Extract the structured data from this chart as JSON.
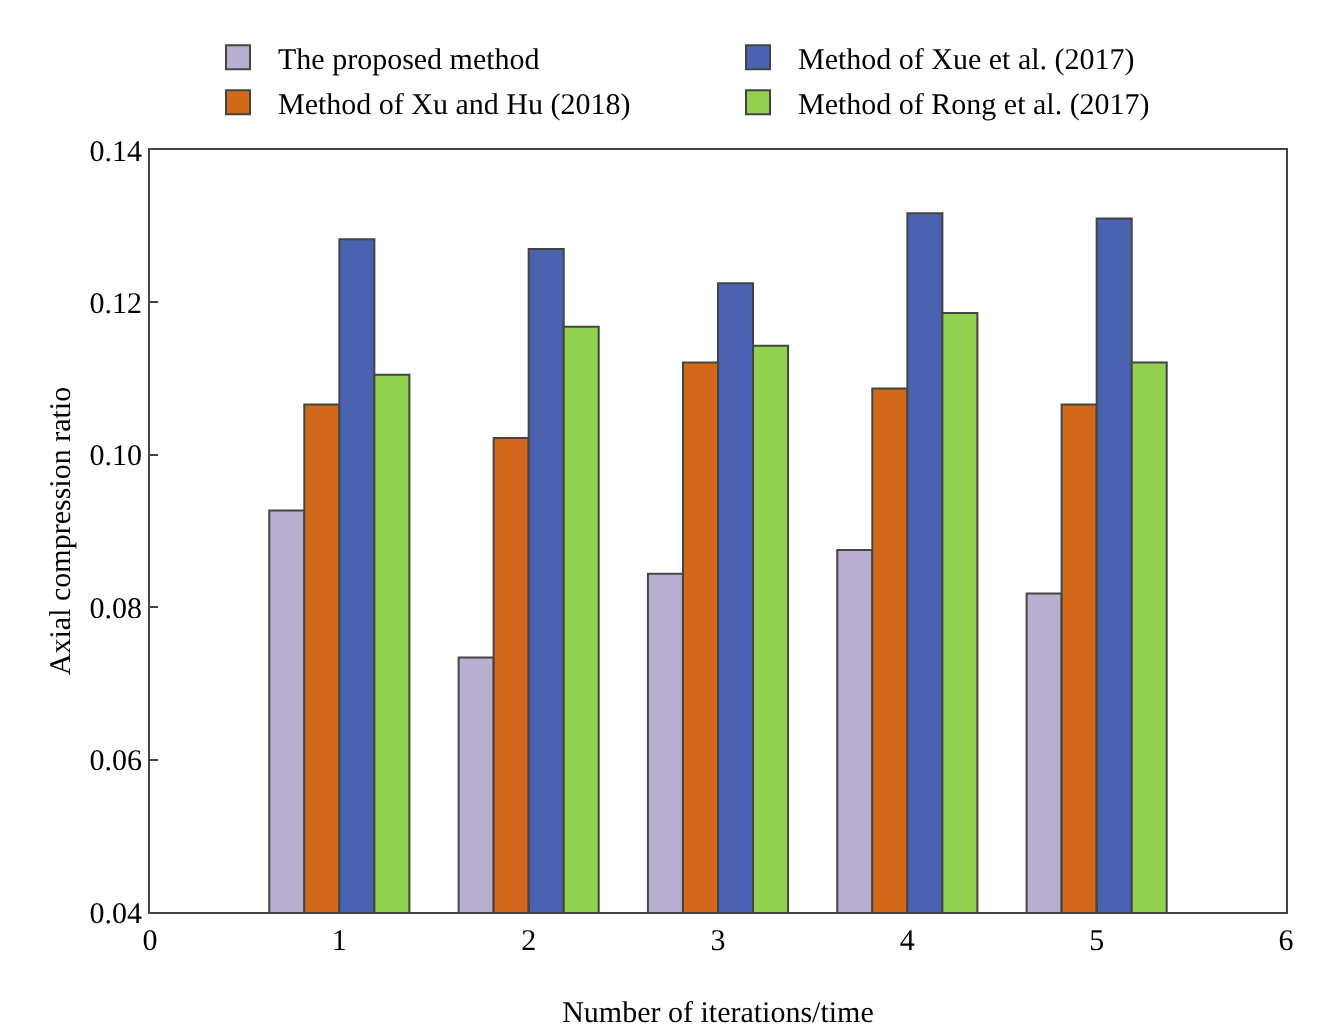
{
  "chart_data": {
    "type": "bar",
    "xlabel": "Number of iterations/time",
    "ylabel": "Axial compression ratio",
    "x": [
      1,
      2,
      3,
      4,
      5
    ],
    "series": [
      {
        "name": "The proposed method",
        "color": "#b8aed0",
        "values": [
          0.0927,
          0.0734,
          0.0844,
          0.0875,
          0.0818
        ]
      },
      {
        "name": "Method of Xu and Hu (2018)",
        "color": "#d2691a",
        "values": [
          0.1066,
          0.1022,
          0.1121,
          0.1087,
          0.1066
        ]
      },
      {
        "name": "Method of Xue et al. (2017)",
        "color": "#4a62b0",
        "values": [
          0.1283,
          0.127,
          0.1225,
          0.1317,
          0.131
        ]
      },
      {
        "name": "Method of Rong et al. (2017)",
        "color": "#92d050",
        "values": [
          0.1105,
          0.1168,
          0.1143,
          0.1186,
          0.1121
        ]
      }
    ],
    "xlim": [
      0,
      6
    ],
    "xticks": [
      0,
      1,
      2,
      3,
      4,
      5,
      6
    ],
    "ylim": [
      0.04,
      0.14
    ],
    "yticks": [
      {
        "value": 0.04,
        "label": "0.04"
      },
      {
        "value": 0.06,
        "label": "0.06"
      },
      {
        "value": 0.08,
        "label": "0.08"
      },
      {
        "value": 0.1,
        "label": "0.10"
      },
      {
        "value": 0.12,
        "label": "0.12"
      },
      {
        "value": 0.14,
        "label": "0.14"
      }
    ],
    "grid": false,
    "legend": "top"
  }
}
